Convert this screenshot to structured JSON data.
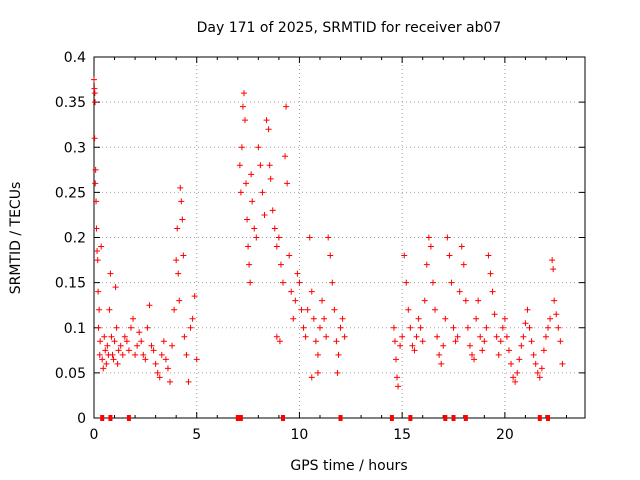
{
  "chart_data": {
    "type": "scatter",
    "title": "Day 171 of 2025, SRMTID for receiver ab07",
    "xlabel": "GPS time / hours",
    "ylabel": "SRMTID / TECUs",
    "xlim": [
      0,
      23.9
    ],
    "ylim": [
      0,
      0.4
    ],
    "xticks": [
      0,
      5,
      10,
      15,
      20
    ],
    "xtick_labels": [
      "0",
      "5",
      "10",
      "15",
      "20"
    ],
    "yticks": [
      0,
      0.05,
      0.1,
      0.15,
      0.2,
      0.25,
      0.3,
      0.35,
      0.4
    ],
    "ytick_labels": [
      "0",
      "0.05",
      "0.1",
      "0.15",
      "0.2",
      "0.25",
      "0.3",
      "0.35",
      "0.4"
    ],
    "grid": true,
    "marker": "+",
    "color": "#ff0000",
    "series": [
      {
        "name": "SRMTID",
        "points": [
          [
            0.0,
            0.375
          ],
          [
            0.02,
            0.365
          ],
          [
            0.04,
            0.36
          ],
          [
            0.05,
            0.35
          ],
          [
            0.03,
            0.31
          ],
          [
            0.08,
            0.275
          ],
          [
            0.06,
            0.26
          ],
          [
            0.1,
            0.24
          ],
          [
            0.12,
            0.21
          ],
          [
            0.15,
            0.185
          ],
          [
            0.18,
            0.175
          ],
          [
            0.2,
            0.14
          ],
          [
            0.25,
            0.12
          ],
          [
            0.22,
            0.1
          ],
          [
            0.3,
            0.085
          ],
          [
            0.35,
            0.19
          ],
          [
            0.28,
            0.07
          ],
          [
            0.4,
            0.065
          ],
          [
            0.45,
            0.055
          ],
          [
            0.5,
            0.09
          ],
          [
            0.55,
            0.075
          ],
          [
            0.6,
            0.06
          ],
          [
            0.65,
            0.08
          ],
          [
            0.7,
            0.07
          ],
          [
            0.75,
            0.12
          ],
          [
            0.8,
            0.16
          ],
          [
            0.85,
            0.09
          ],
          [
            0.9,
            0.07
          ],
          [
            0.95,
            0.065
          ],
          [
            1.0,
            0.085
          ],
          [
            1.05,
            0.145
          ],
          [
            1.1,
            0.1
          ],
          [
            1.15,
            0.06
          ],
          [
            1.2,
            0.075
          ],
          [
            1.3,
            0.08
          ],
          [
            1.4,
            0.07
          ],
          [
            1.5,
            0.09
          ],
          [
            1.6,
            0.085
          ],
          [
            1.7,
            0.075
          ],
          [
            1.8,
            0.1
          ],
          [
            1.9,
            0.11
          ],
          [
            2.0,
            0.07
          ],
          [
            2.1,
            0.08
          ],
          [
            2.2,
            0.095
          ],
          [
            2.3,
            0.085
          ],
          [
            2.4,
            0.07
          ],
          [
            2.5,
            0.065
          ],
          [
            2.6,
            0.1
          ],
          [
            2.7,
            0.125
          ],
          [
            2.8,
            0.08
          ],
          [
            2.9,
            0.075
          ],
          [
            3.0,
            0.06
          ],
          [
            3.1,
            0.05
          ],
          [
            3.2,
            0.045
          ],
          [
            3.3,
            0.07
          ],
          [
            3.4,
            0.085
          ],
          [
            3.5,
            0.065
          ],
          [
            3.6,
            0.055
          ],
          [
            3.7,
            0.04
          ],
          [
            3.8,
            0.08
          ],
          [
            3.9,
            0.12
          ],
          [
            4.0,
            0.175
          ],
          [
            4.05,
            0.21
          ],
          [
            4.1,
            0.16
          ],
          [
            4.15,
            0.13
          ],
          [
            4.2,
            0.255
          ],
          [
            4.25,
            0.24
          ],
          [
            4.3,
            0.22
          ],
          [
            4.35,
            0.18
          ],
          [
            4.4,
            0.09
          ],
          [
            4.5,
            0.07
          ],
          [
            4.6,
            0.04
          ],
          [
            4.7,
            0.1
          ],
          [
            4.8,
            0.11
          ],
          [
            4.9,
            0.135
          ],
          [
            5.0,
            0.065
          ],
          [
            7.1,
            0.28
          ],
          [
            7.15,
            0.25
          ],
          [
            7.2,
            0.3
          ],
          [
            7.25,
            0.345
          ],
          [
            7.3,
            0.36
          ],
          [
            7.35,
            0.33
          ],
          [
            7.4,
            0.26
          ],
          [
            7.45,
            0.22
          ],
          [
            7.5,
            0.19
          ],
          [
            7.55,
            0.17
          ],
          [
            7.6,
            0.15
          ],
          [
            7.65,
            0.27
          ],
          [
            7.7,
            0.24
          ],
          [
            7.8,
            0.21
          ],
          [
            7.9,
            0.2
          ],
          [
            8.0,
            0.3
          ],
          [
            8.1,
            0.28
          ],
          [
            8.2,
            0.25
          ],
          [
            8.3,
            0.225
          ],
          [
            8.4,
            0.33
          ],
          [
            8.5,
            0.32
          ],
          [
            8.55,
            0.28
          ],
          [
            8.6,
            0.265
          ],
          [
            8.7,
            0.23
          ],
          [
            8.8,
            0.21
          ],
          [
            8.9,
            0.19
          ],
          [
            9.0,
            0.2
          ],
          [
            9.1,
            0.17
          ],
          [
            9.2,
            0.15
          ],
          [
            9.3,
            0.29
          ],
          [
            9.35,
            0.345
          ],
          [
            9.4,
            0.26
          ],
          [
            9.5,
            0.18
          ],
          [
            9.6,
            0.14
          ],
          [
            9.7,
            0.11
          ],
          [
            9.8,
            0.13
          ],
          [
            9.9,
            0.16
          ],
          [
            10.0,
            0.15
          ],
          [
            10.1,
            0.12
          ],
          [
            10.2,
            0.1
          ],
          [
            10.3,
            0.09
          ],
          [
            10.4,
            0.12
          ],
          [
            10.5,
            0.2
          ],
          [
            10.6,
            0.14
          ],
          [
            10.7,
            0.11
          ],
          [
            10.8,
            0.085
          ],
          [
            10.9,
            0.07
          ],
          [
            11.0,
            0.1
          ],
          [
            11.1,
            0.13
          ],
          [
            11.2,
            0.11
          ],
          [
            11.3,
            0.09
          ],
          [
            11.4,
            0.2
          ],
          [
            11.5,
            0.18
          ],
          [
            11.6,
            0.15
          ],
          [
            11.7,
            0.12
          ],
          [
            11.8,
            0.085
          ],
          [
            11.9,
            0.07
          ],
          [
            12.0,
            0.1
          ],
          [
            12.1,
            0.11
          ],
          [
            12.2,
            0.09
          ],
          [
            10.6,
            0.045
          ],
          [
            10.9,
            0.05
          ],
          [
            11.85,
            0.05
          ],
          [
            8.9,
            0.09
          ],
          [
            9.05,
            0.085
          ],
          [
            14.6,
            0.1
          ],
          [
            14.65,
            0.085
          ],
          [
            14.7,
            0.065
          ],
          [
            14.75,
            0.045
          ],
          [
            14.8,
            0.035
          ],
          [
            14.9,
            0.08
          ],
          [
            15.0,
            0.09
          ],
          [
            15.1,
            0.18
          ],
          [
            15.2,
            0.15
          ],
          [
            15.3,
            0.12
          ],
          [
            15.4,
            0.1
          ],
          [
            15.5,
            0.08
          ],
          [
            15.6,
            0.075
          ],
          [
            15.7,
            0.09
          ],
          [
            15.8,
            0.11
          ],
          [
            15.9,
            0.1
          ],
          [
            16.0,
            0.085
          ],
          [
            16.1,
            0.13
          ],
          [
            16.2,
            0.17
          ],
          [
            16.3,
            0.2
          ],
          [
            16.4,
            0.19
          ],
          [
            16.5,
            0.15
          ],
          [
            16.6,
            0.12
          ],
          [
            16.7,
            0.09
          ],
          [
            16.8,
            0.07
          ],
          [
            16.9,
            0.06
          ],
          [
            17.0,
            0.08
          ],
          [
            17.1,
            0.11
          ],
          [
            17.2,
            0.2
          ],
          [
            17.3,
            0.18
          ],
          [
            17.4,
            0.15
          ],
          [
            17.5,
            0.1
          ],
          [
            17.6,
            0.085
          ],
          [
            17.7,
            0.09
          ],
          [
            17.8,
            0.14
          ],
          [
            17.9,
            0.19
          ],
          [
            18.0,
            0.17
          ],
          [
            18.1,
            0.13
          ],
          [
            18.2,
            0.1
          ],
          [
            18.3,
            0.08
          ],
          [
            18.4,
            0.07
          ],
          [
            18.5,
            0.065
          ],
          [
            18.6,
            0.11
          ],
          [
            18.7,
            0.13
          ],
          [
            18.8,
            0.09
          ],
          [
            18.9,
            0.075
          ],
          [
            19.0,
            0.085
          ],
          [
            19.1,
            0.1
          ],
          [
            19.2,
            0.18
          ],
          [
            19.3,
            0.16
          ],
          [
            19.4,
            0.14
          ],
          [
            19.5,
            0.115
          ],
          [
            19.6,
            0.09
          ],
          [
            19.7,
            0.07
          ],
          [
            19.8,
            0.085
          ],
          [
            19.9,
            0.1
          ],
          [
            20.0,
            0.11
          ],
          [
            20.1,
            0.09
          ],
          [
            20.2,
            0.075
          ],
          [
            20.3,
            0.06
          ],
          [
            20.4,
            0.045
          ],
          [
            20.5,
            0.04
          ],
          [
            20.6,
            0.05
          ],
          [
            20.7,
            0.065
          ],
          [
            20.8,
            0.08
          ],
          [
            20.9,
            0.09
          ],
          [
            21.0,
            0.105
          ],
          [
            21.1,
            0.12
          ],
          [
            21.2,
            0.1
          ],
          [
            21.3,
            0.085
          ],
          [
            21.4,
            0.07
          ],
          [
            21.5,
            0.06
          ],
          [
            21.6,
            0.05
          ],
          [
            21.7,
            0.045
          ],
          [
            21.8,
            0.055
          ],
          [
            21.9,
            0.075
          ],
          [
            22.0,
            0.09
          ],
          [
            22.1,
            0.1
          ],
          [
            22.2,
            0.11
          ],
          [
            22.3,
            0.175
          ],
          [
            22.35,
            0.165
          ],
          [
            22.4,
            0.13
          ],
          [
            22.5,
            0.115
          ],
          [
            22.6,
            0.1
          ],
          [
            22.7,
            0.085
          ],
          [
            22.8,
            0.06
          ]
        ]
      }
    ],
    "baseline_markers_x": [
      0.4,
      0.8,
      1.7,
      7.0,
      7.15,
      9.2,
      12.0,
      14.5,
      15.4,
      17.1,
      17.5,
      18.1,
      21.7,
      22.1
    ]
  }
}
